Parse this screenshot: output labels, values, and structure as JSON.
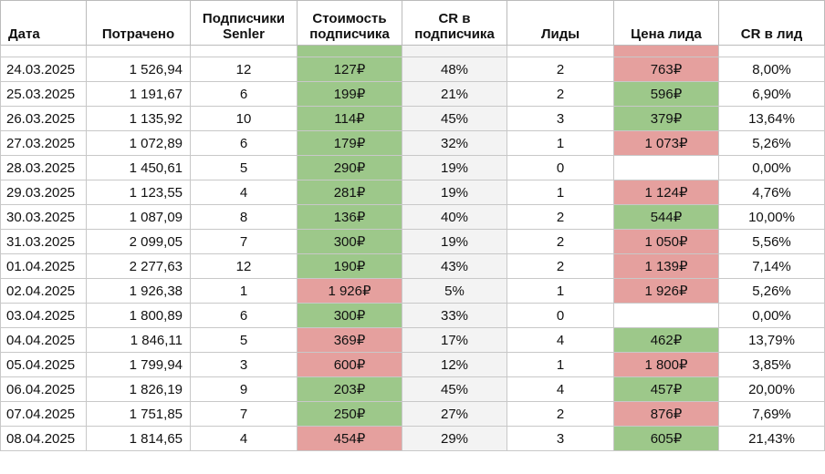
{
  "table": {
    "header": [
      "Дата",
      "Потрачено",
      "Подписчики Senler",
      "Стоимость подписчика",
      "CR в подписчика",
      "Лиды",
      "Цена лида",
      "CR в лид"
    ],
    "palette": {
      "green": "#9dc88a",
      "red": "#e5a09e"
    },
    "rows": [
      {
        "cells": [
          "24.03.2025",
          "1 526,94",
          "12",
          "127₽",
          "48%",
          "2",
          "763₽",
          "8,00%"
        ],
        "fill": {
          "3": "green",
          "6": "red"
        }
      },
      {
        "cells": [
          "25.03.2025",
          "1 191,67",
          "6",
          "199₽",
          "21%",
          "2",
          "596₽",
          "6,90%"
        ],
        "fill": {
          "3": "green",
          "6": "green"
        }
      },
      {
        "cells": [
          "26.03.2025",
          "1 135,92",
          "10",
          "114₽",
          "45%",
          "3",
          "379₽",
          "13,64%"
        ],
        "fill": {
          "3": "green",
          "6": "green"
        }
      },
      {
        "cells": [
          "27.03.2025",
          "1 072,89",
          "6",
          "179₽",
          "32%",
          "1",
          "1 073₽",
          "5,26%"
        ],
        "fill": {
          "3": "green",
          "6": "red"
        }
      },
      {
        "cells": [
          "28.03.2025",
          "1 450,61",
          "5",
          "290₽",
          "19%",
          "0",
          null,
          "0,00%"
        ],
        "fill": {
          "3": "green"
        }
      },
      {
        "cells": [
          "29.03.2025",
          "1 123,55",
          "4",
          "281₽",
          "19%",
          "1",
          "1 124₽",
          "4,76%"
        ],
        "fill": {
          "3": "green",
          "6": "red"
        }
      },
      {
        "cells": [
          "30.03.2025",
          "1 087,09",
          "8",
          "136₽",
          "40%",
          "2",
          "544₽",
          "10,00%"
        ],
        "fill": {
          "3": "green",
          "6": "green"
        }
      },
      {
        "cells": [
          "31.03.2025",
          "2 099,05",
          "7",
          "300₽",
          "19%",
          "2",
          "1 050₽",
          "5,56%"
        ],
        "fill": {
          "3": "green",
          "6": "red"
        }
      },
      {
        "cells": [
          "01.04.2025",
          "2 277,63",
          "12",
          "190₽",
          "43%",
          "2",
          "1 139₽",
          "7,14%"
        ],
        "fill": {
          "3": "green",
          "6": "red"
        }
      },
      {
        "cells": [
          "02.04.2025",
          "1 926,38",
          "1",
          "1 926₽",
          "5%",
          "1",
          "1 926₽",
          "5,26%"
        ],
        "fill": {
          "3": "red",
          "6": "red"
        }
      },
      {
        "cells": [
          "03.04.2025",
          "1 800,89",
          "6",
          "300₽",
          "33%",
          "0",
          null,
          "0,00%"
        ],
        "fill": {
          "3": "green"
        }
      },
      {
        "cells": [
          "04.04.2025",
          "1 846,11",
          "5",
          "369₽",
          "17%",
          "4",
          "462₽",
          "13,79%"
        ],
        "fill": {
          "3": "red",
          "6": "green"
        }
      },
      {
        "cells": [
          "05.04.2025",
          "1 799,94",
          "3",
          "600₽",
          "12%",
          "1",
          "1 800₽",
          "3,85%"
        ],
        "fill": {
          "3": "red",
          "6": "red"
        }
      },
      {
        "cells": [
          "06.04.2025",
          "1 826,19",
          "9",
          "203₽",
          "45%",
          "4",
          "457₽",
          "20,00%"
        ],
        "fill": {
          "3": "green",
          "6": "green"
        }
      },
      {
        "cells": [
          "07.04.2025",
          "1 751,85",
          "7",
          "250₽",
          "27%",
          "2",
          "876₽",
          "7,69%"
        ],
        "fill": {
          "3": "green",
          "6": "red"
        }
      },
      {
        "cells": [
          "08.04.2025",
          "1 814,65",
          "4",
          "454₽",
          "29%",
          "3",
          "605₽",
          "21,43%"
        ],
        "fill": {
          "3": "red",
          "6": "green"
        }
      }
    ]
  }
}
